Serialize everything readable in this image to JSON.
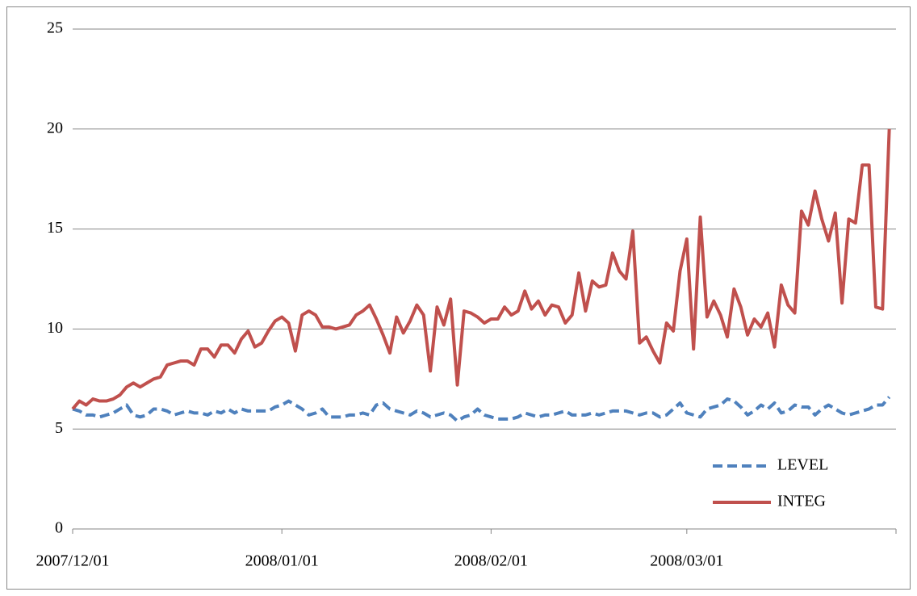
{
  "chart_data": {
    "type": "line",
    "x": [
      "2007/12/01",
      "2007/12/02",
      "2007/12/03",
      "2007/12/04",
      "2007/12/05",
      "2007/12/06",
      "2007/12/07",
      "2007/12/08",
      "2007/12/09",
      "2007/12/10",
      "2007/12/11",
      "2007/12/12",
      "2007/12/13",
      "2007/12/14",
      "2007/12/15",
      "2007/12/16",
      "2007/12/17",
      "2007/12/18",
      "2007/12/19",
      "2007/12/20",
      "2007/12/21",
      "2007/12/22",
      "2007/12/23",
      "2007/12/24",
      "2007/12/25",
      "2007/12/26",
      "2007/12/27",
      "2007/12/28",
      "2007/12/29",
      "2007/12/30",
      "2007/12/31",
      "2008/01/01",
      "2008/01/02",
      "2008/01/03",
      "2008/01/04",
      "2008/01/05",
      "2008/01/06",
      "2008/01/07",
      "2008/01/08",
      "2008/01/09",
      "2008/01/10",
      "2008/01/11",
      "2008/01/12",
      "2008/01/13",
      "2008/01/14",
      "2008/01/15",
      "2008/01/16",
      "2008/01/17",
      "2008/01/18",
      "2008/01/19",
      "2008/01/20",
      "2008/01/21",
      "2008/01/22",
      "2008/01/23",
      "2008/01/24",
      "2008/01/25",
      "2008/01/26",
      "2008/01/27",
      "2008/01/28",
      "2008/01/29",
      "2008/01/30",
      "2008/01/31",
      "2008/02/01",
      "2008/02/02",
      "2008/02/03",
      "2008/02/04",
      "2008/02/05",
      "2008/02/06",
      "2008/02/07",
      "2008/02/08",
      "2008/02/09",
      "2008/02/10",
      "2008/02/11",
      "2008/02/12",
      "2008/02/13",
      "2008/02/14",
      "2008/02/15",
      "2008/02/16",
      "2008/02/17",
      "2008/02/18",
      "2008/02/19",
      "2008/02/20",
      "2008/02/21",
      "2008/02/22",
      "2008/02/23",
      "2008/02/24",
      "2008/02/25",
      "2008/02/26",
      "2008/02/27",
      "2008/02/28",
      "2008/02/29",
      "2008/03/01",
      "2008/03/02",
      "2008/03/03",
      "2008/03/04",
      "2008/03/05",
      "2008/03/06",
      "2008/03/07",
      "2008/03/08",
      "2008/03/09",
      "2008/03/10",
      "2008/03/11",
      "2008/03/12",
      "2008/03/13",
      "2008/03/14",
      "2008/03/15",
      "2008/03/16",
      "2008/03/17",
      "2008/03/18",
      "2008/03/19",
      "2008/03/20",
      "2008/03/21",
      "2008/03/22",
      "2008/03/23",
      "2008/03/24",
      "2008/03/25",
      "2008/03/26",
      "2008/03/27",
      "2008/03/28",
      "2008/03/29",
      "2008/03/30",
      "2008/03/31"
    ],
    "series": [
      {
        "name": "LEVEL",
        "color": "#4f81bd",
        "line_style": "dashed",
        "values": [
          6.0,
          5.9,
          5.7,
          5.7,
          5.6,
          5.7,
          5.8,
          6.0,
          6.2,
          5.7,
          5.6,
          5.7,
          6.0,
          6.0,
          5.9,
          5.7,
          5.8,
          5.9,
          5.8,
          5.8,
          5.7,
          5.9,
          5.8,
          6.0,
          5.8,
          6.0,
          5.9,
          5.9,
          5.9,
          5.9,
          6.1,
          6.2,
          6.4,
          6.2,
          6.0,
          5.7,
          5.8,
          6.0,
          5.6,
          5.6,
          5.6,
          5.7,
          5.7,
          5.8,
          5.7,
          6.2,
          6.3,
          6.0,
          5.9,
          5.8,
          5.7,
          5.9,
          5.8,
          5.6,
          5.7,
          5.8,
          5.7,
          5.4,
          5.6,
          5.7,
          6.0,
          5.7,
          5.6,
          5.5,
          5.5,
          5.5,
          5.6,
          5.8,
          5.7,
          5.6,
          5.7,
          5.7,
          5.8,
          5.9,
          5.7,
          5.7,
          5.7,
          5.8,
          5.7,
          5.8,
          5.9,
          5.9,
          5.9,
          5.8,
          5.7,
          5.8,
          5.8,
          5.6,
          5.7,
          6.0,
          6.3,
          5.8,
          5.7,
          5.6,
          6.0,
          6.1,
          6.2,
          6.5,
          6.4,
          6.1,
          5.7,
          5.9,
          6.2,
          6.0,
          6.3,
          5.8,
          5.9,
          6.2,
          6.1,
          6.1,
          5.7,
          6.0,
          6.2,
          6.0,
          5.8,
          5.7,
          5.8,
          5.9,
          6.0,
          6.2,
          6.2,
          6.6
        ]
      },
      {
        "name": "INTEG",
        "color": "#c0504d",
        "line_style": "solid",
        "values": [
          6.0,
          6.4,
          6.2,
          6.5,
          6.4,
          6.4,
          6.5,
          6.7,
          7.1,
          7.3,
          7.1,
          7.3,
          7.5,
          7.6,
          8.2,
          8.3,
          8.4,
          8.4,
          8.2,
          9.0,
          9.0,
          8.6,
          9.2,
          9.2,
          8.8,
          9.5,
          9.9,
          9.1,
          9.3,
          9.9,
          10.4,
          10.6,
          10.3,
          8.9,
          10.7,
          10.9,
          10.7,
          10.1,
          10.1,
          10.0,
          10.1,
          10.2,
          10.7,
          10.9,
          11.2,
          10.5,
          9.7,
          8.8,
          10.6,
          9.8,
          10.4,
          11.2,
          10.7,
          7.9,
          11.1,
          10.2,
          11.5,
          7.2,
          10.9,
          10.8,
          10.6,
          10.3,
          10.5,
          10.5,
          11.1,
          10.7,
          10.9,
          11.9,
          11.0,
          11.4,
          10.7,
          11.2,
          11.1,
          10.3,
          10.7,
          12.8,
          10.9,
          12.4,
          12.1,
          12.2,
          13.8,
          12.9,
          12.5,
          14.9,
          9.3,
          9.6,
          8.9,
          8.3,
          10.3,
          9.9,
          12.9,
          14.5,
          9.0,
          15.6,
          10.6,
          11.4,
          10.7,
          9.6,
          12.0,
          11.1,
          9.7,
          10.5,
          10.1,
          10.8,
          9.1,
          12.2,
          11.2,
          10.8,
          15.9,
          15.2,
          16.9,
          15.5,
          14.4,
          15.8,
          11.3,
          15.5,
          15.3,
          18.2,
          18.2,
          11.1,
          11.0,
          20.0
        ]
      }
    ],
    "xlim": [
      "2007/12/01",
      "2008/04/01"
    ],
    "xticks": [
      "2007/12/01",
      "2008/01/01",
      "2008/02/01",
      "2008/03/01"
    ],
    "ylim": [
      0,
      25
    ],
    "yticks": [
      0,
      5,
      10,
      15,
      20,
      25
    ],
    "grid": true,
    "legend": "lower-right"
  }
}
